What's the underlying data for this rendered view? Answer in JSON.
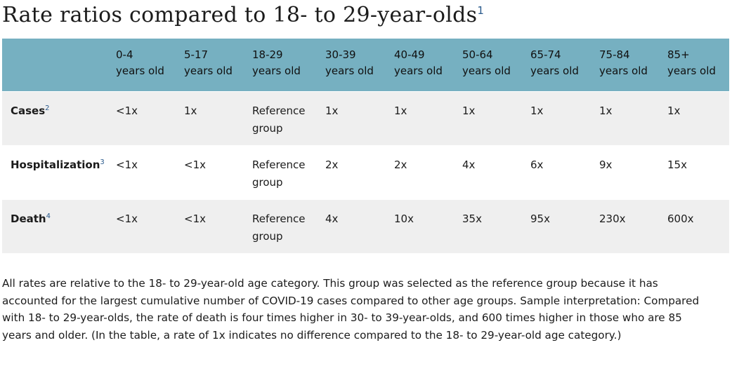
{
  "title": {
    "text": "Rate ratios compared to 18- to 29-year-olds",
    "footnote_ref": "1"
  },
  "table": {
    "columns": [
      {
        "line1": "0-4",
        "line2": "years old"
      },
      {
        "line1": "5-17",
        "line2": "years old"
      },
      {
        "line1": "18-29",
        "line2": "years old"
      },
      {
        "line1": "30-39",
        "line2": "years old"
      },
      {
        "line1": "40-49",
        "line2": "years old"
      },
      {
        "line1": "50-64",
        "line2": "years old"
      },
      {
        "line1": "65-74",
        "line2": "years old"
      },
      {
        "line1": "75-84",
        "line2": "years old"
      },
      {
        "line1": "85+",
        "line2": "years old"
      }
    ],
    "reference": {
      "line1": "Reference",
      "line2": "group"
    },
    "rows": [
      {
        "label": "Cases",
        "footnote_ref": "2",
        "values": [
          "<1x",
          "1x",
          "",
          "1x",
          "1x",
          "1x",
          "1x",
          "1x",
          "1x"
        ]
      },
      {
        "label": "Hospitalization",
        "footnote_ref": "3",
        "values": [
          "<1x",
          "<1x",
          "",
          "2x",
          "2x",
          "4x",
          "6x",
          "9x",
          "15x"
        ]
      },
      {
        "label": "Death",
        "footnote_ref": "4",
        "values": [
          "<1x",
          "<1x",
          "",
          "4x",
          "10x",
          "35x",
          "95x",
          "230x",
          "600x"
        ]
      }
    ]
  },
  "footnote": {
    "text": "All rates are relative to the 18- to 29-year-old age category. This group was selected as the reference group because it has accounted for the largest cumulative number of COVID-19 cases compared to other age groups. Sample interpretation: Compared with 18- to 29-year-olds, the rate of death is four times higher in 30- to 39-year-olds, and 600 times higher in those who are 85 years and older. (In the table, a rate of 1x indicates no difference compared to the 18- to 29-year-old age category.)"
  },
  "colors": {
    "header_bg": "#76b0c1",
    "row_shaded_bg": "#efefef",
    "footnote_ref": "#2a5a8c"
  }
}
